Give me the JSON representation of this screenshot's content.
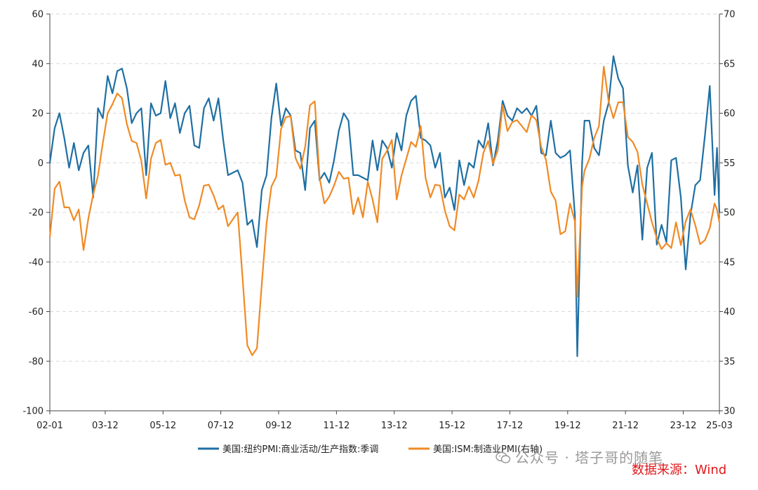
{
  "chart_data": {
    "type": "line",
    "title": "",
    "xlabel": "",
    "y_left_label": "",
    "y_right_label": "",
    "x_ticks": [
      "02-01",
      "03-12",
      "05-12",
      "07-12",
      "09-12",
      "11-12",
      "13-12",
      "15-12",
      "17-12",
      "19-12",
      "21-12",
      "23-12",
      "25-03"
    ],
    "y_left_ticks": [
      "60",
      "40",
      "20",
      "0",
      "-20",
      "-40",
      "-60",
      "-80",
      "-100"
    ],
    "y_right_ticks": [
      "70",
      "65",
      "60",
      "55",
      "50",
      "45",
      "40",
      "35",
      "30"
    ],
    "y_left_range": [
      -100,
      60
    ],
    "y_right_range": [
      30,
      70
    ],
    "x_range": [
      "2002-01",
      "2025-03"
    ],
    "grid": "horizontal dashed",
    "legend_position": "bottom",
    "series": [
      {
        "name": "美国:纽约PMI:商业活动/生产指数:季调",
        "axis": "left",
        "color": "#1f6fa3",
        "points": [
          [
            "2002-01",
            0
          ],
          [
            "2002-03",
            14
          ],
          [
            "2002-05",
            20
          ],
          [
            "2002-07",
            10
          ],
          [
            "2002-09",
            -2
          ],
          [
            "2002-11",
            8
          ],
          [
            "2003-01",
            -3
          ],
          [
            "2003-03",
            4
          ],
          [
            "2003-05",
            7
          ],
          [
            "2003-07",
            -14
          ],
          [
            "2003-09",
            22
          ],
          [
            "2003-11",
            18
          ],
          [
            "2004-01",
            35
          ],
          [
            "2004-03",
            28
          ],
          [
            "2004-05",
            37
          ],
          [
            "2004-07",
            38
          ],
          [
            "2004-09",
            30
          ],
          [
            "2004-11",
            16
          ],
          [
            "2005-01",
            20
          ],
          [
            "2005-03",
            22
          ],
          [
            "2005-05",
            -5
          ],
          [
            "2005-07",
            24
          ],
          [
            "2005-09",
            19
          ],
          [
            "2005-11",
            20
          ],
          [
            "2006-01",
            33
          ],
          [
            "2006-03",
            18
          ],
          [
            "2006-05",
            24
          ],
          [
            "2006-07",
            12
          ],
          [
            "2006-09",
            20
          ],
          [
            "2006-11",
            23
          ],
          [
            "2007-01",
            7
          ],
          [
            "2007-03",
            6
          ],
          [
            "2007-05",
            22
          ],
          [
            "2007-07",
            26
          ],
          [
            "2007-09",
            17
          ],
          [
            "2007-11",
            26
          ],
          [
            "2008-01",
            9
          ],
          [
            "2008-03",
            -5
          ],
          [
            "2008-05",
            -4
          ],
          [
            "2008-07",
            -3
          ],
          [
            "2008-09",
            -8
          ],
          [
            "2008-11",
            -25
          ],
          [
            "2009-01",
            -23
          ],
          [
            "2009-03",
            -34
          ],
          [
            "2009-05",
            -11
          ],
          [
            "2009-07",
            -5
          ],
          [
            "2009-09",
            18
          ],
          [
            "2009-11",
            32
          ],
          [
            "2010-01",
            15
          ],
          [
            "2010-03",
            22
          ],
          [
            "2010-05",
            19
          ],
          [
            "2010-07",
            5
          ],
          [
            "2010-09",
            4
          ],
          [
            "2010-11",
            -11
          ],
          [
            "2011-01",
            14
          ],
          [
            "2011-03",
            17
          ],
          [
            "2011-05",
            -7
          ],
          [
            "2011-07",
            -4
          ],
          [
            "2011-09",
            -8
          ],
          [
            "2011-11",
            1
          ],
          [
            "2012-01",
            13
          ],
          [
            "2012-03",
            20
          ],
          [
            "2012-05",
            17
          ],
          [
            "2012-07",
            -5
          ],
          [
            "2012-09",
            -5
          ],
          [
            "2012-11",
            -6
          ],
          [
            "2013-01",
            -7
          ],
          [
            "2013-03",
            9
          ],
          [
            "2013-05",
            -3
          ],
          [
            "2013-07",
            9
          ],
          [
            "2013-09",
            6
          ],
          [
            "2013-11",
            -2
          ],
          [
            "2014-01",
            12
          ],
          [
            "2014-03",
            5
          ],
          [
            "2014-05",
            19
          ],
          [
            "2014-07",
            25
          ],
          [
            "2014-09",
            27
          ],
          [
            "2014-11",
            10
          ],
          [
            "2015-01",
            9
          ],
          [
            "2015-03",
            7
          ],
          [
            "2015-05",
            -2
          ],
          [
            "2015-07",
            4
          ],
          [
            "2015-09",
            -14
          ],
          [
            "2015-11",
            -10
          ],
          [
            "2016-01",
            -19
          ],
          [
            "2016-03",
            1
          ],
          [
            "2016-05",
            -9
          ],
          [
            "2016-07",
            0
          ],
          [
            "2016-09",
            -2
          ],
          [
            "2016-11",
            9
          ],
          [
            "2017-01",
            6
          ],
          [
            "2017-03",
            16
          ],
          [
            "2017-05",
            -1
          ],
          [
            "2017-07",
            9
          ],
          [
            "2017-09",
            25
          ],
          [
            "2017-11",
            19
          ],
          [
            "2018-01",
            17
          ],
          [
            "2018-03",
            22
          ],
          [
            "2018-05",
            20
          ],
          [
            "2018-07",
            22
          ],
          [
            "2018-09",
            19
          ],
          [
            "2018-11",
            23
          ],
          [
            "2019-01",
            4
          ],
          [
            "2019-03",
            3
          ],
          [
            "2019-05",
            17
          ],
          [
            "2019-07",
            4
          ],
          [
            "2019-09",
            2
          ],
          [
            "2019-11",
            3
          ],
          [
            "2020-01",
            5
          ],
          [
            "2020-03",
            -21
          ],
          [
            "2020-04",
            -78
          ],
          [
            "2020-06",
            0
          ],
          [
            "2020-07",
            17
          ],
          [
            "2020-09",
            17
          ],
          [
            "2020-11",
            6
          ],
          [
            "2021-01",
            3
          ],
          [
            "2021-03",
            17
          ],
          [
            "2021-05",
            24
          ],
          [
            "2021-07",
            43
          ],
          [
            "2021-09",
            34
          ],
          [
            "2021-11",
            30
          ],
          [
            "2022-01",
            -1
          ],
          [
            "2022-03",
            -12
          ],
          [
            "2022-05",
            -1
          ],
          [
            "2022-07",
            -31
          ],
          [
            "2022-09",
            -2
          ],
          [
            "2022-11",
            4
          ],
          [
            "2023-01",
            -33
          ],
          [
            "2023-03",
            -25
          ],
          [
            "2023-05",
            -32
          ],
          [
            "2023-07",
            1
          ],
          [
            "2023-09",
            2
          ],
          [
            "2023-11",
            -14
          ],
          [
            "2024-01",
            -43
          ],
          [
            "2024-03",
            -21
          ],
          [
            "2024-05",
            -9
          ],
          [
            "2024-07",
            -7
          ],
          [
            "2024-09",
            11
          ],
          [
            "2024-11",
            31
          ],
          [
            "2025-01",
            -13
          ],
          [
            "2025-02",
            6
          ],
          [
            "2025-03",
            -20
          ]
        ]
      },
      {
        "name": "美国:ISM:制造业PMI(右轴)",
        "axis": "right",
        "color": "#f08a24",
        "points": [
          [
            "2002-01",
            47.5
          ],
          [
            "2002-03",
            52.4
          ],
          [
            "2002-05",
            53.1
          ],
          [
            "2002-07",
            50.5
          ],
          [
            "2002-09",
            50.5
          ],
          [
            "2002-11",
            49.2
          ],
          [
            "2003-01",
            50.3
          ],
          [
            "2003-03",
            46.2
          ],
          [
            "2003-05",
            49.4
          ],
          [
            "2003-07",
            51.8
          ],
          [
            "2003-09",
            53.7
          ],
          [
            "2003-11",
            57.0
          ],
          [
            "2004-01",
            60.0
          ],
          [
            "2004-03",
            60.9
          ],
          [
            "2004-05",
            62.0
          ],
          [
            "2004-07",
            61.5
          ],
          [
            "2004-09",
            58.9
          ],
          [
            "2004-11",
            57.2
          ],
          [
            "2005-01",
            57.0
          ],
          [
            "2005-03",
            55.2
          ],
          [
            "2005-05",
            51.4
          ],
          [
            "2005-07",
            55.4
          ],
          [
            "2005-09",
            57.0
          ],
          [
            "2005-11",
            57.3
          ],
          [
            "2006-01",
            54.8
          ],
          [
            "2006-03",
            55.0
          ],
          [
            "2006-05",
            53.7
          ],
          [
            "2006-07",
            53.8
          ],
          [
            "2006-09",
            51.2
          ],
          [
            "2006-11",
            49.5
          ],
          [
            "2007-01",
            49.3
          ],
          [
            "2007-03",
            50.7
          ],
          [
            "2007-05",
            52.7
          ],
          [
            "2007-07",
            52.8
          ],
          [
            "2007-09",
            51.7
          ],
          [
            "2007-11",
            50.3
          ],
          [
            "2008-01",
            50.7
          ],
          [
            "2008-03",
            48.6
          ],
          [
            "2008-05",
            49.3
          ],
          [
            "2008-07",
            50.0
          ],
          [
            "2008-09",
            43.5
          ],
          [
            "2008-11",
            36.6
          ],
          [
            "2009-01",
            35.6
          ],
          [
            "2009-03",
            36.3
          ],
          [
            "2009-05",
            42.8
          ],
          [
            "2009-07",
            48.9
          ],
          [
            "2009-09",
            52.6
          ],
          [
            "2009-11",
            53.6
          ],
          [
            "2010-01",
            58.4
          ],
          [
            "2010-03",
            59.6
          ],
          [
            "2010-05",
            59.7
          ],
          [
            "2010-07",
            55.5
          ],
          [
            "2010-09",
            54.4
          ],
          [
            "2010-11",
            56.6
          ],
          [
            "2011-01",
            60.8
          ],
          [
            "2011-03",
            61.2
          ],
          [
            "2011-05",
            53.5
          ],
          [
            "2011-07",
            50.9
          ],
          [
            "2011-09",
            51.6
          ],
          [
            "2011-11",
            52.7
          ],
          [
            "2012-01",
            54.1
          ],
          [
            "2012-03",
            53.4
          ],
          [
            "2012-05",
            53.5
          ],
          [
            "2012-07",
            49.8
          ],
          [
            "2012-09",
            51.5
          ],
          [
            "2012-11",
            49.5
          ],
          [
            "2013-01",
            53.1
          ],
          [
            "2013-03",
            51.3
          ],
          [
            "2013-05",
            49.0
          ],
          [
            "2013-07",
            55.4
          ],
          [
            "2013-09",
            56.2
          ],
          [
            "2013-11",
            57.3
          ],
          [
            "2014-01",
            51.3
          ],
          [
            "2014-03",
            53.7
          ],
          [
            "2014-05",
            55.4
          ],
          [
            "2014-07",
            57.1
          ],
          [
            "2014-09",
            56.6
          ],
          [
            "2014-11",
            58.7
          ],
          [
            "2015-01",
            53.5
          ],
          [
            "2015-03",
            51.5
          ],
          [
            "2015-05",
            52.8
          ],
          [
            "2015-07",
            52.7
          ],
          [
            "2015-09",
            50.2
          ],
          [
            "2015-11",
            48.6
          ],
          [
            "2016-01",
            48.2
          ],
          [
            "2016-03",
            51.8
          ],
          [
            "2016-05",
            51.3
          ],
          [
            "2016-07",
            52.6
          ],
          [
            "2016-09",
            51.5
          ],
          [
            "2016-11",
            53.2
          ],
          [
            "2017-01",
            56.0
          ],
          [
            "2017-03",
            57.2
          ],
          [
            "2017-05",
            54.9
          ],
          [
            "2017-07",
            56.3
          ],
          [
            "2017-09",
            60.8
          ],
          [
            "2017-11",
            58.2
          ],
          [
            "2018-01",
            59.1
          ],
          [
            "2018-03",
            59.3
          ],
          [
            "2018-05",
            58.7
          ],
          [
            "2018-07",
            58.1
          ],
          [
            "2018-09",
            59.8
          ],
          [
            "2018-11",
            59.3
          ],
          [
            "2019-01",
            56.6
          ],
          [
            "2019-03",
            55.3
          ],
          [
            "2019-05",
            52.1
          ],
          [
            "2019-07",
            51.2
          ],
          [
            "2019-09",
            47.8
          ],
          [
            "2019-11",
            48.1
          ],
          [
            "2020-01",
            50.9
          ],
          [
            "2020-03",
            49.1
          ],
          [
            "2020-04",
            41.5
          ],
          [
            "2020-06",
            52.6
          ],
          [
            "2020-07",
            54.2
          ],
          [
            "2020-09",
            55.4
          ],
          [
            "2020-11",
            57.5
          ],
          [
            "2021-01",
            58.7
          ],
          [
            "2021-03",
            64.7
          ],
          [
            "2021-05",
            61.2
          ],
          [
            "2021-07",
            59.5
          ],
          [
            "2021-09",
            61.1
          ],
          [
            "2021-11",
            61.1
          ],
          [
            "2022-01",
            57.6
          ],
          [
            "2022-03",
            57.1
          ],
          [
            "2022-05",
            56.1
          ],
          [
            "2022-07",
            52.8
          ],
          [
            "2022-09",
            50.9
          ],
          [
            "2022-11",
            49.0
          ],
          [
            "2023-01",
            47.4
          ],
          [
            "2023-03",
            46.3
          ],
          [
            "2023-05",
            46.9
          ],
          [
            "2023-07",
            46.4
          ],
          [
            "2023-09",
            49.0
          ],
          [
            "2023-11",
            46.7
          ],
          [
            "2024-01",
            49.1
          ],
          [
            "2024-03",
            50.3
          ],
          [
            "2024-05",
            48.7
          ],
          [
            "2024-07",
            46.8
          ],
          [
            "2024-09",
            47.2
          ],
          [
            "2024-11",
            48.4
          ],
          [
            "2025-01",
            50.9
          ],
          [
            "2025-02",
            50.3
          ],
          [
            "2025-03",
            49.0
          ]
        ]
      }
    ]
  },
  "watermark": {
    "text": "公众号 · 塔子哥的随笔",
    "icon": "wechat-icon"
  },
  "source": "数据来源：Wind"
}
